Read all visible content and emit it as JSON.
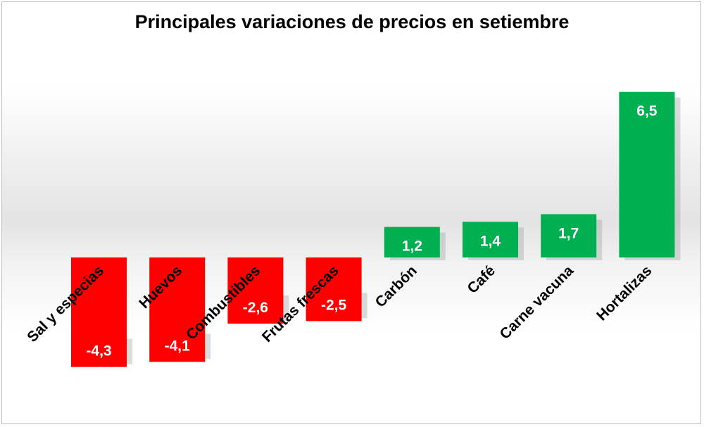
{
  "chart_data": {
    "type": "bar",
    "title": "Principales variaciones de precios en setiembre",
    "categories": [
      "Sal y especias",
      "Huevos",
      "Combustibles",
      "Frutas frescas",
      "Carbón",
      "Café",
      "Carne vacuna",
      "Hortalizas"
    ],
    "values": [
      -4.3,
      -4.1,
      -2.6,
      -2.5,
      1.2,
      1.4,
      1.7,
      6.5
    ],
    "value_labels": [
      "-4,3",
      "-4,1",
      "-2,6",
      "-2,5",
      "1,2",
      "1,4",
      "1,7",
      "6,5"
    ],
    "xlabel": "",
    "ylabel": "",
    "ylim": [
      -4.3,
      6.5
    ],
    "grid": false,
    "legend": "none",
    "colors": {
      "negative": "#ff0000",
      "positive": "#00b050"
    }
  }
}
